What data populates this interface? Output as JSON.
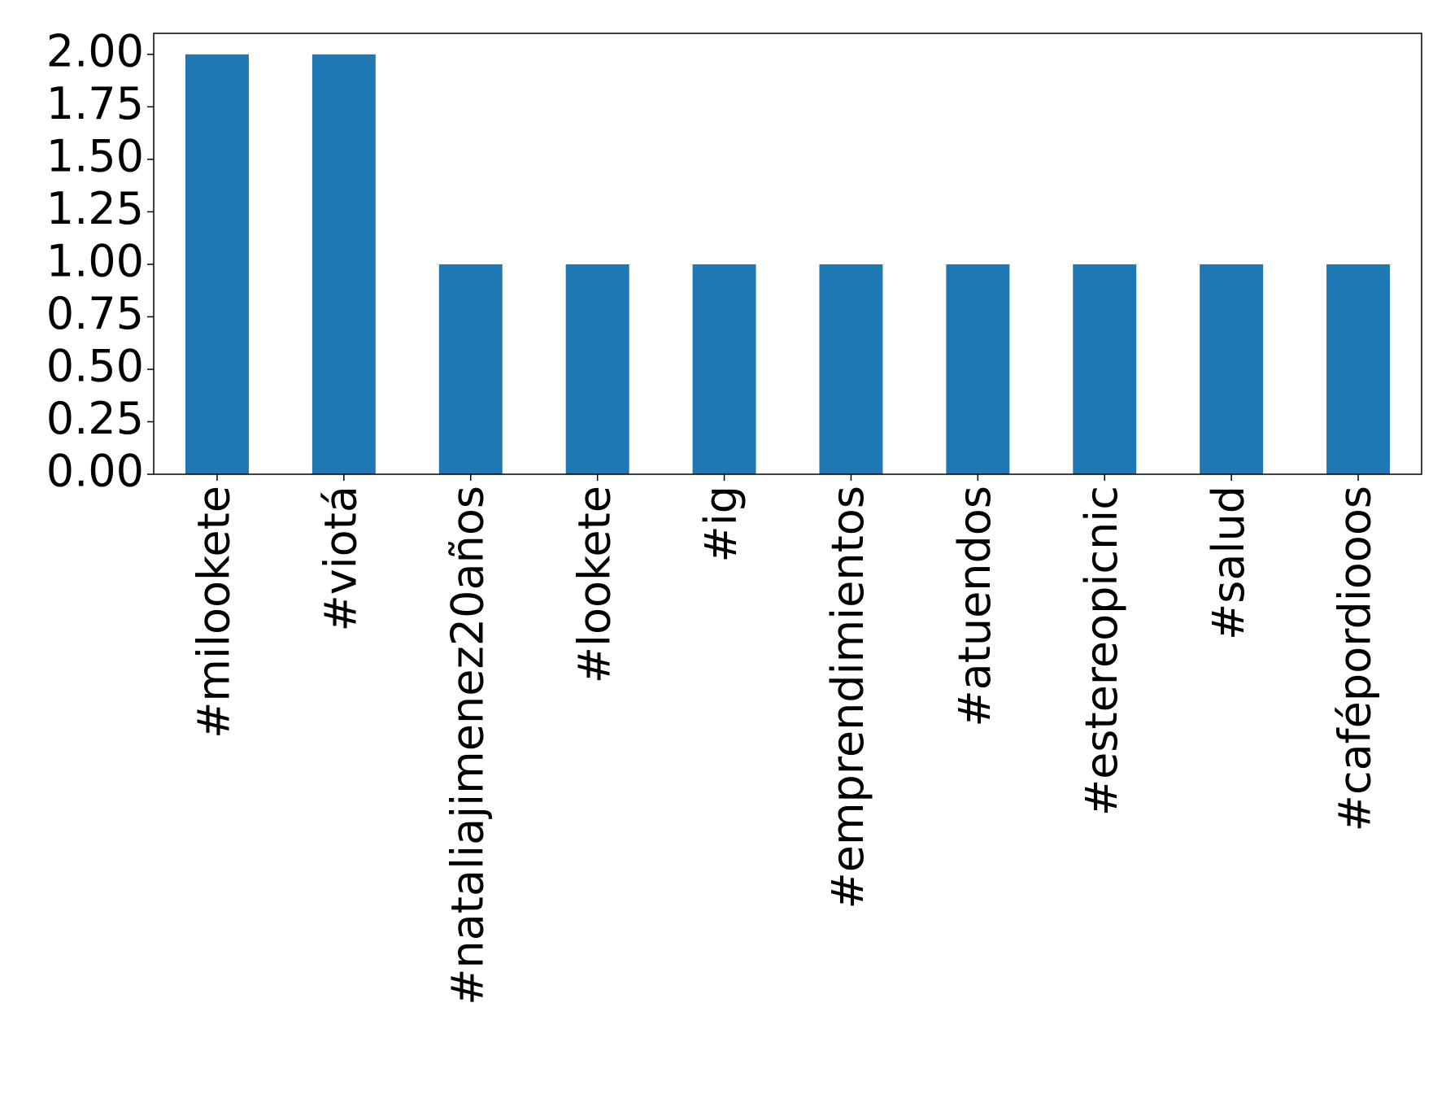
{
  "chart_data": {
    "type": "bar",
    "categories": [
      "#milookete",
      "#viotá",
      "#nataliajimenez20años",
      "#lookete",
      "#ig",
      "#emprendimientos",
      "#atuendos",
      "#estereopicnic",
      "#salud",
      "#cafépordiooos"
    ],
    "values": [
      2,
      2,
      1,
      1,
      1,
      1,
      1,
      1,
      1,
      1
    ],
    "color": "#1f77b4",
    "ylim": [
      0,
      2.1
    ],
    "yticks": [
      {
        "value": 0,
        "label": "0.00"
      },
      {
        "value": 0.25,
        "label": "0.25"
      },
      {
        "value": 0.5,
        "label": "0.50"
      },
      {
        "value": 0.75,
        "label": "0.75"
      },
      {
        "value": 1,
        "label": "1.00"
      },
      {
        "value": 1.25,
        "label": "1.25"
      },
      {
        "value": 1.5,
        "label": "1.50"
      },
      {
        "value": 1.75,
        "label": "1.75"
      },
      {
        "value": 2,
        "label": "2.00"
      }
    ],
    "grid": false
  }
}
